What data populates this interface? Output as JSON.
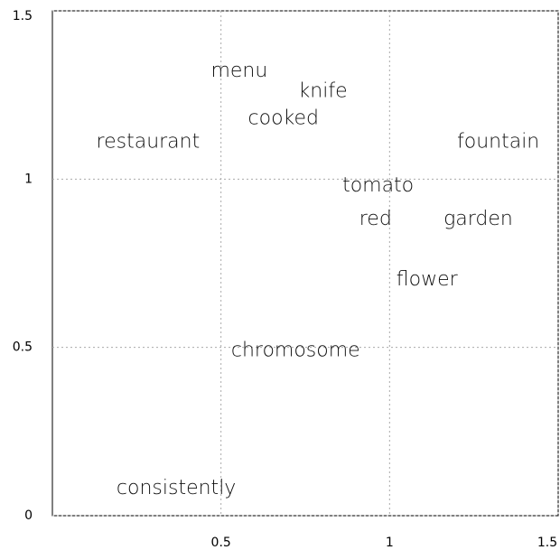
{
  "chart_data": {
    "type": "scatter",
    "labels": [
      "menu",
      "knife",
      "cooked",
      "restaurant",
      "fountain",
      "tomato",
      "red",
      "garden",
      "flower",
      "chromosome",
      "consistently"
    ],
    "x": [
      0.47,
      0.73,
      0.58,
      0.13,
      1.2,
      0.86,
      0.91,
      1.16,
      1.02,
      0.53,
      0.19
    ],
    "y": [
      1.32,
      1.26,
      1.18,
      1.11,
      1.11,
      0.98,
      0.88,
      0.88,
      0.7,
      0.49,
      0.08
    ],
    "xlim": [
      0,
      1.5
    ],
    "ylim": [
      0,
      1.5
    ],
    "xticks": [
      0.5,
      1,
      1.5
    ],
    "yticks": [
      0,
      0.5,
      1,
      1.5
    ],
    "grid": true
  }
}
